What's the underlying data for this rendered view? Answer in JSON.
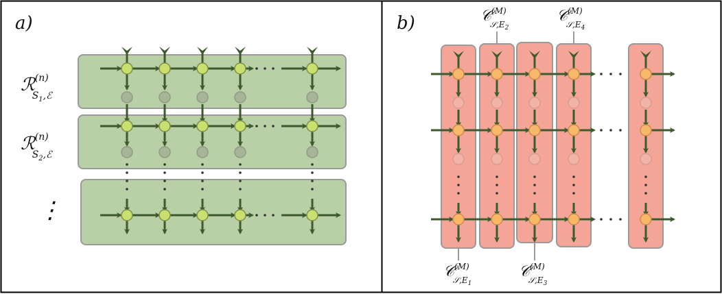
{
  "panels": {
    "a": {
      "label": "a)",
      "row_labels": [
        {
          "main": "ℛ",
          "sup": "(n)",
          "sub": "S",
          "subsub": "1",
          "tail": ",ℰ"
        },
        {
          "main": "ℛ",
          "sup": "(n)",
          "sub": "S",
          "subsub": "2",
          "tail": ",ℰ"
        }
      ],
      "ellipsis": "⋮",
      "row_fill": "#b9cfa6",
      "node_fill": "#c9df6e"
    },
    "b": {
      "label": "b)",
      "column_labels": [
        {
          "main": "𝒞",
          "sup": "(M)",
          "sub": "𝒮,E",
          "subsub": "1"
        },
        {
          "main": "𝒞",
          "sup": "(M)",
          "sub": "𝒮,E",
          "subsub": "2"
        },
        {
          "main": "𝒞",
          "sup": "(M)",
          "sub": "𝒮,E",
          "subsub": "3"
        },
        {
          "main": "𝒞",
          "sup": "(M)",
          "sub": "𝒮,E",
          "subsub": "4"
        }
      ],
      "column_fill": "#f4a598",
      "node_fill": "#f7b86a"
    }
  }
}
